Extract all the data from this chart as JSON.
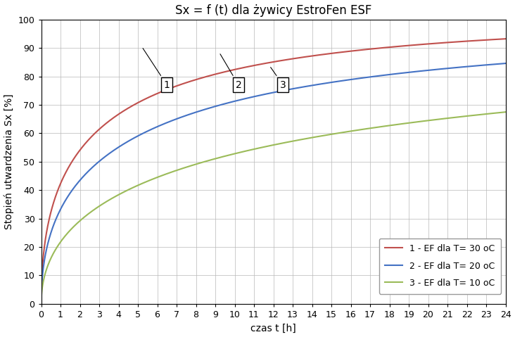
{
  "title": "Sx = f (t) dla żywicy EstroFen ESF",
  "xlabel": "czas t [h]",
  "ylabel": "Stopień utwardzenia Sx [%]",
  "xlim": [
    0,
    24
  ],
  "ylim": [
    0,
    100
  ],
  "xticks": [
    0,
    1,
    2,
    3,
    4,
    5,
    6,
    7,
    8,
    9,
    10,
    11,
    12,
    13,
    14,
    15,
    16,
    17,
    18,
    19,
    20,
    21,
    22,
    23,
    24
  ],
  "yticks": [
    0,
    10,
    20,
    30,
    40,
    50,
    60,
    70,
    80,
    90,
    100
  ],
  "curves": [
    {
      "label": "1 - EF dla T= 30 oC",
      "color": "#C0504D",
      "S_max": 100.0,
      "k": 0.55,
      "n": 0.5
    },
    {
      "label": "2 - EF dla T= 20 oC",
      "color": "#4472C4",
      "S_max": 97.0,
      "k": 0.42,
      "n": 0.5
    },
    {
      "label": "3 - EF dla T= 10 oC",
      "color": "#9BBB59",
      "S_max": 92.0,
      "k": 0.27,
      "n": 0.5
    }
  ],
  "annotations": [
    {
      "text": "1",
      "xbox": 6.5,
      "ybox": 77,
      "xarrow": 5.2,
      "yarrow": 90.5
    },
    {
      "text": "2",
      "xbox": 10.2,
      "ybox": 77,
      "xarrow": 9.2,
      "yarrow": 88.5
    },
    {
      "text": "3",
      "xbox": 12.5,
      "ybox": 77,
      "xarrow": 11.8,
      "yarrow": 83.8
    }
  ],
  "background_color": "#FFFFFF",
  "grid_color": "#B8B8B8",
  "title_fontsize": 12,
  "axis_fontsize": 10,
  "tick_fontsize": 9,
  "legend_fontsize": 9
}
